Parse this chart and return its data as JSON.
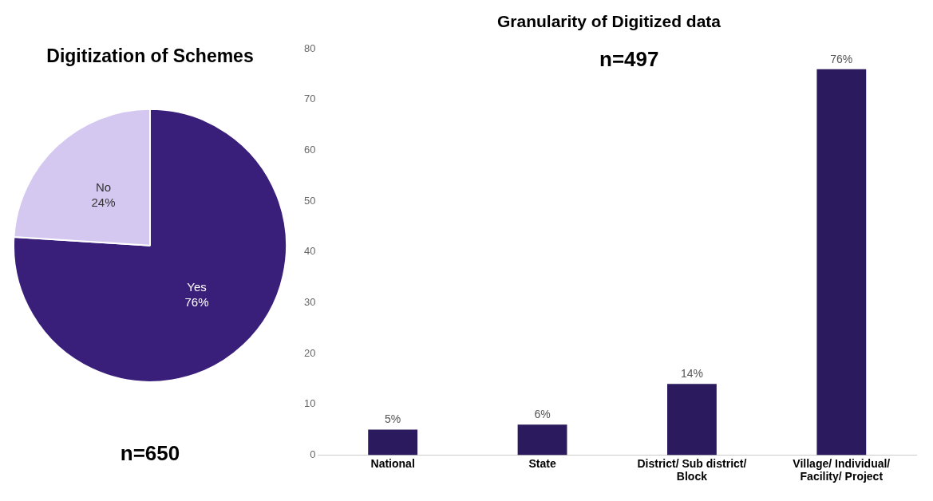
{
  "chart_data": [
    {
      "type": "pie",
      "title": "Digitization of Schemes",
      "categories": [
        "Yes",
        "No"
      ],
      "values": [
        76,
        24
      ],
      "value_labels": [
        "76%",
        "24%"
      ],
      "colors": [
        "#3a1f7a",
        "#d4c8f0"
      ],
      "legend": false,
      "annotations": [
        "n=650"
      ]
    },
    {
      "type": "bar",
      "title": "Granularity of Digitized data",
      "categories": [
        "National",
        "State",
        "District/ Sub district/ Block",
        "Village/ Individual/ Facility/ Project"
      ],
      "values": [
        5,
        6,
        14,
        76
      ],
      "value_labels": [
        "5%",
        "6%",
        "14%",
        "76%"
      ],
      "color": "#2c1a5e",
      "ylim": [
        0,
        80
      ],
      "yticks": [
        0,
        10,
        20,
        30,
        40,
        50,
        60,
        70,
        80
      ],
      "grid": false,
      "legend": false,
      "annotations": [
        "n=497"
      ]
    }
  ]
}
